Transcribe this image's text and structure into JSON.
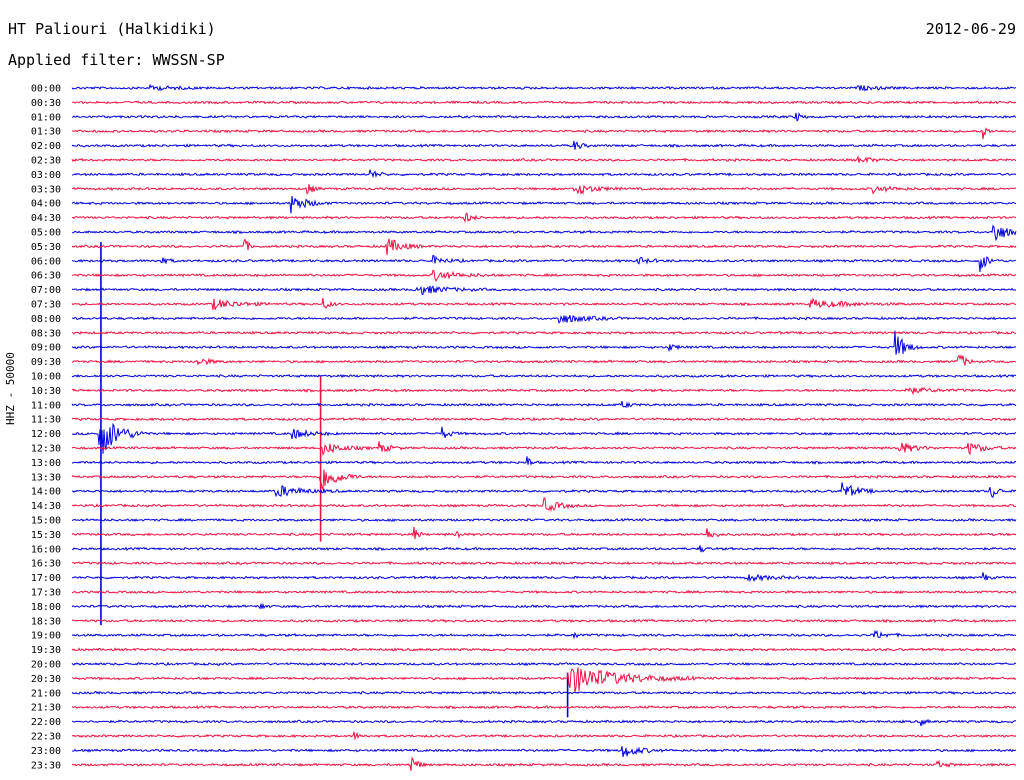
{
  "header": {
    "station": "HT Paliouri (Halkidiki)",
    "date": "2012-06-29",
    "filter": "Applied filter: WWSSN-SP"
  },
  "channel_label": "HHZ - 50000",
  "colors": {
    "even": "#0000dd",
    "odd": "#ee1144"
  },
  "chart_data": {
    "type": "line",
    "title": "HT Paliouri (Halkidiki)",
    "subtitle": "Applied filter: WWSSN-SP",
    "ylabel": "HHZ - 50000",
    "xlabel": "",
    "grid": false,
    "trace_minutes": 30,
    "rows": [
      "00:00",
      "00:30",
      "01:00",
      "01:30",
      "02:00",
      "02:30",
      "03:00",
      "03:30",
      "04:00",
      "04:30",
      "05:00",
      "05:30",
      "06:00",
      "06:30",
      "07:00",
      "07:30",
      "08:00",
      "08:30",
      "09:00",
      "09:30",
      "10:00",
      "10:30",
      "11:00",
      "11:30",
      "12:00",
      "12:30",
      "13:00",
      "13:30",
      "14:00",
      "14:30",
      "15:00",
      "15:30",
      "16:00",
      "16:30",
      "17:00",
      "17:30",
      "18:00",
      "18:30",
      "19:00",
      "19:30",
      "20:00",
      "20:30",
      "21:00",
      "21:30",
      "22:00",
      "22:30",
      "23:00",
      "23:30"
    ],
    "events": [
      {
        "row": "00:00",
        "min": 2.5,
        "amp": 2,
        "dur": 2
      },
      {
        "row": "00:00",
        "min": 25.0,
        "amp": 2,
        "dur": 1.5
      },
      {
        "row": "01:00",
        "min": 23.0,
        "amp": 5,
        "dur": 0.4
      },
      {
        "row": "01:30",
        "min": 29.0,
        "amp": 6,
        "dur": 0.3
      },
      {
        "row": "02:00",
        "min": 16.0,
        "amp": 4,
        "dur": 0.6
      },
      {
        "row": "02:30",
        "min": 25.0,
        "amp": 3,
        "dur": 1.2
      },
      {
        "row": "03:00",
        "min": 9.5,
        "amp": 4,
        "dur": 0.6
      },
      {
        "row": "03:30",
        "min": 7.5,
        "amp": 5,
        "dur": 0.5
      },
      {
        "row": "03:30",
        "min": 16.0,
        "amp": 6,
        "dur": 1.5
      },
      {
        "row": "03:30",
        "min": 25.5,
        "amp": 3,
        "dur": 1.5
      },
      {
        "row": "04:00",
        "min": 7.0,
        "amp": 9,
        "dur": 1.2
      },
      {
        "row": "04:30",
        "min": 12.5,
        "amp": 5,
        "dur": 0.6
      },
      {
        "row": "05:00",
        "min": 29.3,
        "amp": 12,
        "dur": 1.0
      },
      {
        "row": "05:30",
        "min": 5.5,
        "amp": 8,
        "dur": 0.3
      },
      {
        "row": "05:30",
        "min": 10.0,
        "amp": 9,
        "dur": 1.2
      },
      {
        "row": "06:00",
        "min": 2.8,
        "amp": 4,
        "dur": 0.6
      },
      {
        "row": "06:00",
        "min": 11.5,
        "amp": 4,
        "dur": 1.0
      },
      {
        "row": "06:00",
        "min": 18.0,
        "amp": 3,
        "dur": 1.0
      },
      {
        "row": "06:00",
        "min": 28.9,
        "amp": 9,
        "dur": 0.6
      },
      {
        "row": "06:30",
        "min": 11.5,
        "amp": 5,
        "dur": 2.0
      },
      {
        "row": "07:00",
        "min": 11.0,
        "amp": 5,
        "dur": 2.2
      },
      {
        "row": "07:30",
        "min": 4.5,
        "amp": 5,
        "dur": 2.0
      },
      {
        "row": "07:30",
        "min": 8.0,
        "amp": 5,
        "dur": 0.6
      },
      {
        "row": "07:30",
        "min": 23.5,
        "amp": 4,
        "dur": 3.0
      },
      {
        "row": "08:00",
        "min": 15.5,
        "amp": 5,
        "dur": 2.0
      },
      {
        "row": "09:00",
        "min": 26.2,
        "amp": 14,
        "dur": 0.8
      },
      {
        "row": "09:00",
        "min": 19.0,
        "amp": 3,
        "dur": 0.6
      },
      {
        "row": "09:30",
        "min": 4.0,
        "amp": 4,
        "dur": 1.0
      },
      {
        "row": "09:30",
        "min": 28.2,
        "amp": 10,
        "dur": 0.5
      },
      {
        "row": "10:30",
        "min": 26.5,
        "amp": 3,
        "dur": 2.0
      },
      {
        "row": "11:00",
        "min": 17.5,
        "amp": 3,
        "dur": 0.6
      },
      {
        "row": "12:00",
        "min": 0.9,
        "amp": 24,
        "dur": 1.5
      },
      {
        "row": "12:00",
        "min": 7.0,
        "amp": 5,
        "dur": 1.5
      },
      {
        "row": "12:00",
        "min": 11.8,
        "amp": 5,
        "dur": 0.6
      },
      {
        "row": "12:30",
        "min": 8.0,
        "amp": 6,
        "dur": 1.5
      },
      {
        "row": "12:30",
        "min": 9.8,
        "amp": 5,
        "dur": 0.8
      },
      {
        "row": "12:30",
        "min": 26.3,
        "amp": 6,
        "dur": 1.2
      },
      {
        "row": "12:30",
        "min": 28.5,
        "amp": 6,
        "dur": 1.2
      },
      {
        "row": "13:00",
        "min": 14.5,
        "amp": 5,
        "dur": 0.3
      },
      {
        "row": "13:30",
        "min": 7.9,
        "amp": 16,
        "dur": 1.3
      },
      {
        "row": "14:00",
        "min": 6.5,
        "amp": 6,
        "dur": 2.0
      },
      {
        "row": "14:00",
        "min": 24.5,
        "amp": 8,
        "dur": 1.2
      },
      {
        "row": "14:00",
        "min": 29.2,
        "amp": 9,
        "dur": 0.5
      },
      {
        "row": "14:30",
        "min": 15.0,
        "amp": 7,
        "dur": 1.2
      },
      {
        "row": "15:30",
        "min": 10.9,
        "amp": 7,
        "dur": 0.3
      },
      {
        "row": "15:30",
        "min": 12.2,
        "amp": 7,
        "dur": 0.3
      },
      {
        "row": "15:30",
        "min": 20.2,
        "amp": 6,
        "dur": 0.6
      },
      {
        "row": "16:00",
        "min": 20.0,
        "amp": 3,
        "dur": 0.4
      },
      {
        "row": "17:00",
        "min": 21.5,
        "amp": 3,
        "dur": 2.0
      },
      {
        "row": "17:00",
        "min": 29.0,
        "amp": 4,
        "dur": 0.3
      },
      {
        "row": "18:00",
        "min": 6.0,
        "amp": 4,
        "dur": 0.3
      },
      {
        "row": "19:00",
        "min": 16.0,
        "amp": 3,
        "dur": 0.3
      },
      {
        "row": "19:00",
        "min": 25.5,
        "amp": 4,
        "dur": 1.0
      },
      {
        "row": "20:30",
        "min": 15.8,
        "amp": 15,
        "dur": 4.0
      },
      {
        "row": "22:00",
        "min": 27.0,
        "amp": 3,
        "dur": 0.4
      },
      {
        "row": "22:30",
        "min": 9.0,
        "amp": 3,
        "dur": 0.4
      },
      {
        "row": "23:00",
        "min": 17.5,
        "amp": 7,
        "dur": 1.3
      },
      {
        "row": "23:30",
        "min": 10.8,
        "amp": 9,
        "dur": 0.5
      },
      {
        "row": "23:30",
        "min": 27.5,
        "amp": 3,
        "dur": 0.8
      }
    ]
  }
}
